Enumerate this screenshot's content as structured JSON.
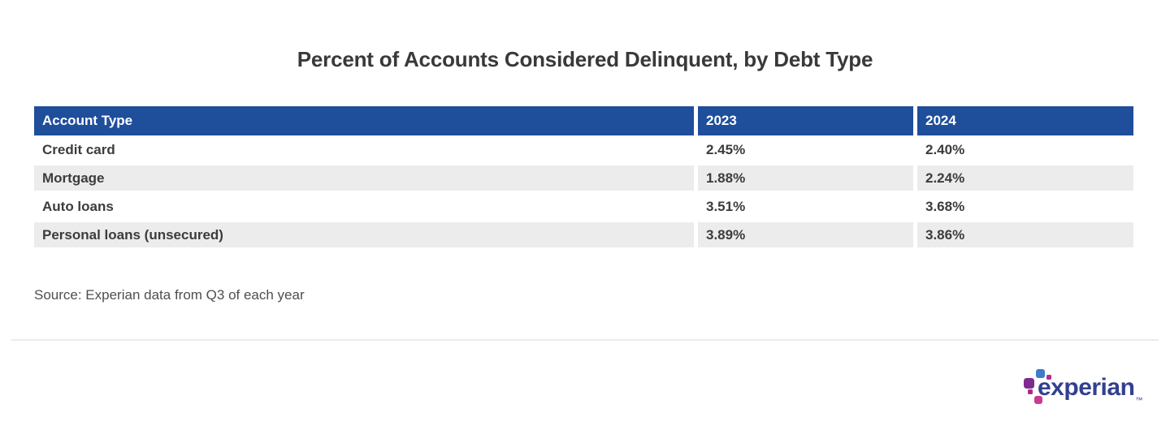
{
  "page": {
    "title": "Percent of Accounts Considered Delinquent, by Debt Type",
    "source_note": "Source: Experian data from Q3 of each year"
  },
  "chart_data": {
    "type": "table",
    "title": "Percent of Accounts Considered Delinquent, by Debt Type",
    "columns": [
      "Account Type",
      "2023",
      "2024"
    ],
    "rows": [
      [
        "Credit card",
        "2.45%",
        "2.40%"
      ],
      [
        "Mortgage",
        "1.88%",
        "2.24%"
      ],
      [
        "Auto loans",
        "3.51%",
        "3.68%"
      ],
      [
        "Personal loans (unsecured)",
        "3.89%",
        "3.86%"
      ]
    ],
    "series": [
      {
        "name": "2023",
        "values": [
          2.45,
          1.88,
          3.51,
          3.89
        ]
      },
      {
        "name": "2024",
        "values": [
          2.4,
          2.24,
          3.68,
          3.86
        ]
      }
    ],
    "categories": [
      "Credit card",
      "Mortgage",
      "Auto loans",
      "Personal loans (unsecured)"
    ],
    "source": "Source: Experian data from Q3 of each year",
    "layout": {
      "header_bg": "#1f4e9b",
      "alt_row_bg": "#ececec",
      "zebra": true
    }
  },
  "logo": {
    "wordmark": "experian",
    "trademark": "™",
    "colors": {
      "wordmark": "#32408f",
      "dot_blue": "#3d7cc9",
      "dot_purple": "#7d2b8f",
      "dot_magenta": "#b03090",
      "dot_pink": "#c83c8e"
    }
  },
  "colors": {
    "header_bg": "#1f4e9b",
    "header_text": "#ffffff",
    "alt_row_bg": "#ececec",
    "body_text": "#3c3c3c",
    "title_text": "#393939",
    "source_text": "#4f4f4f",
    "divider": "#ebebeb"
  }
}
